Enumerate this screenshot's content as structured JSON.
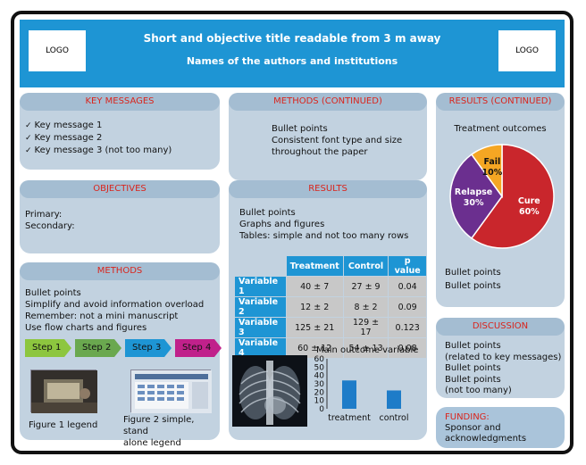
{
  "header": {
    "title": "Short and objective title readable from 3 m away",
    "subtitle": "Names of the authors and institutions",
    "logo_left": "LOGO",
    "logo_right": "LOGO"
  },
  "key_messages": {
    "heading": "KEY MESSAGES",
    "items": [
      "Key message 1",
      "Key message 2",
      "Key message 3 (not too many)"
    ]
  },
  "objectives": {
    "heading": "OBJECTIVES",
    "primary": "Primary:",
    "secondary": "Secondary:"
  },
  "methods": {
    "heading": "METHODS",
    "lines": [
      "Bullet points",
      "Simplify and avoid information overload",
      "Remember: not a mini manuscript",
      "Use flow charts and figures"
    ],
    "steps": [
      {
        "label": "Step 1",
        "color": "#8dc63f"
      },
      {
        "label": "Step 2",
        "color": "#6aa84f"
      },
      {
        "label": "Step 3",
        "color": "#1e95d4"
      },
      {
        "label": "Step 4",
        "color": "#c0218b"
      }
    ],
    "figure1_legend": "Figure 1 legend",
    "figure2_legend_line1": "Figure 2 simple, stand",
    "figure2_legend_line2": "alone legend"
  },
  "methods_continued": {
    "heading": "METHODS (CONTINUED)",
    "lines": [
      "Bullet points",
      "Consistent font type and size",
      "throughout the paper"
    ]
  },
  "results": {
    "heading": "RESULTS",
    "lines": [
      "Bullet points",
      "Graphs and figures",
      "Tables: simple and not too many rows"
    ],
    "table": {
      "columns": [
        "",
        "Treatment",
        "Control",
        "p value"
      ],
      "rows": [
        [
          "Variable 1",
          "40 ± 7",
          "27 ± 9",
          "0.04"
        ],
        [
          "Variable 2",
          "12 ± 2",
          "8 ± 2",
          "0.09"
        ],
        [
          "Variable 3",
          "125 ± 21",
          "129 ± 17",
          "0.123"
        ],
        [
          "Variable 4",
          "60 ± 12",
          "54 ± 13",
          "0.08"
        ]
      ]
    },
    "chart_title": "Main outcome variable"
  },
  "results_continued": {
    "heading": "RESULTS (CONTINUED)",
    "chart_title": "Treatment outcomes",
    "lines": [
      "Bullet points",
      "Bullet points"
    ]
  },
  "discussion": {
    "heading": "DISCUSSION",
    "lines": [
      "Bullet points",
      "(related to key messages)",
      "Bullet points",
      "Bullet points",
      "(not too many)"
    ]
  },
  "funding": {
    "label": "FUNDING:",
    "lines": [
      "Sponsor and",
      "acknowledgments"
    ]
  },
  "chart_data": [
    {
      "type": "bar",
      "title": "Main outcome variable",
      "categories": [
        "treatment",
        "control"
      ],
      "values": [
        34,
        22
      ],
      "yticks": [
        0,
        10,
        20,
        30,
        40,
        50,
        60
      ],
      "ylim": [
        0,
        60
      ],
      "color": "#1e7cc8"
    },
    {
      "type": "pie",
      "title": "Treatment outcomes",
      "slices": [
        {
          "label": "Cure",
          "value": 60,
          "value_label": "60%",
          "color": "#c9262c"
        },
        {
          "label": "Relapse",
          "value": 30,
          "value_label": "30%",
          "color": "#6b2f8f"
        },
        {
          "label": "Fail",
          "value": 10,
          "value_label": "10%",
          "color": "#f5a623"
        }
      ]
    }
  ],
  "colors": {
    "accent": "#1e95d4",
    "heading_red": "#d9251d",
    "panel": "#c2d2e0"
  }
}
